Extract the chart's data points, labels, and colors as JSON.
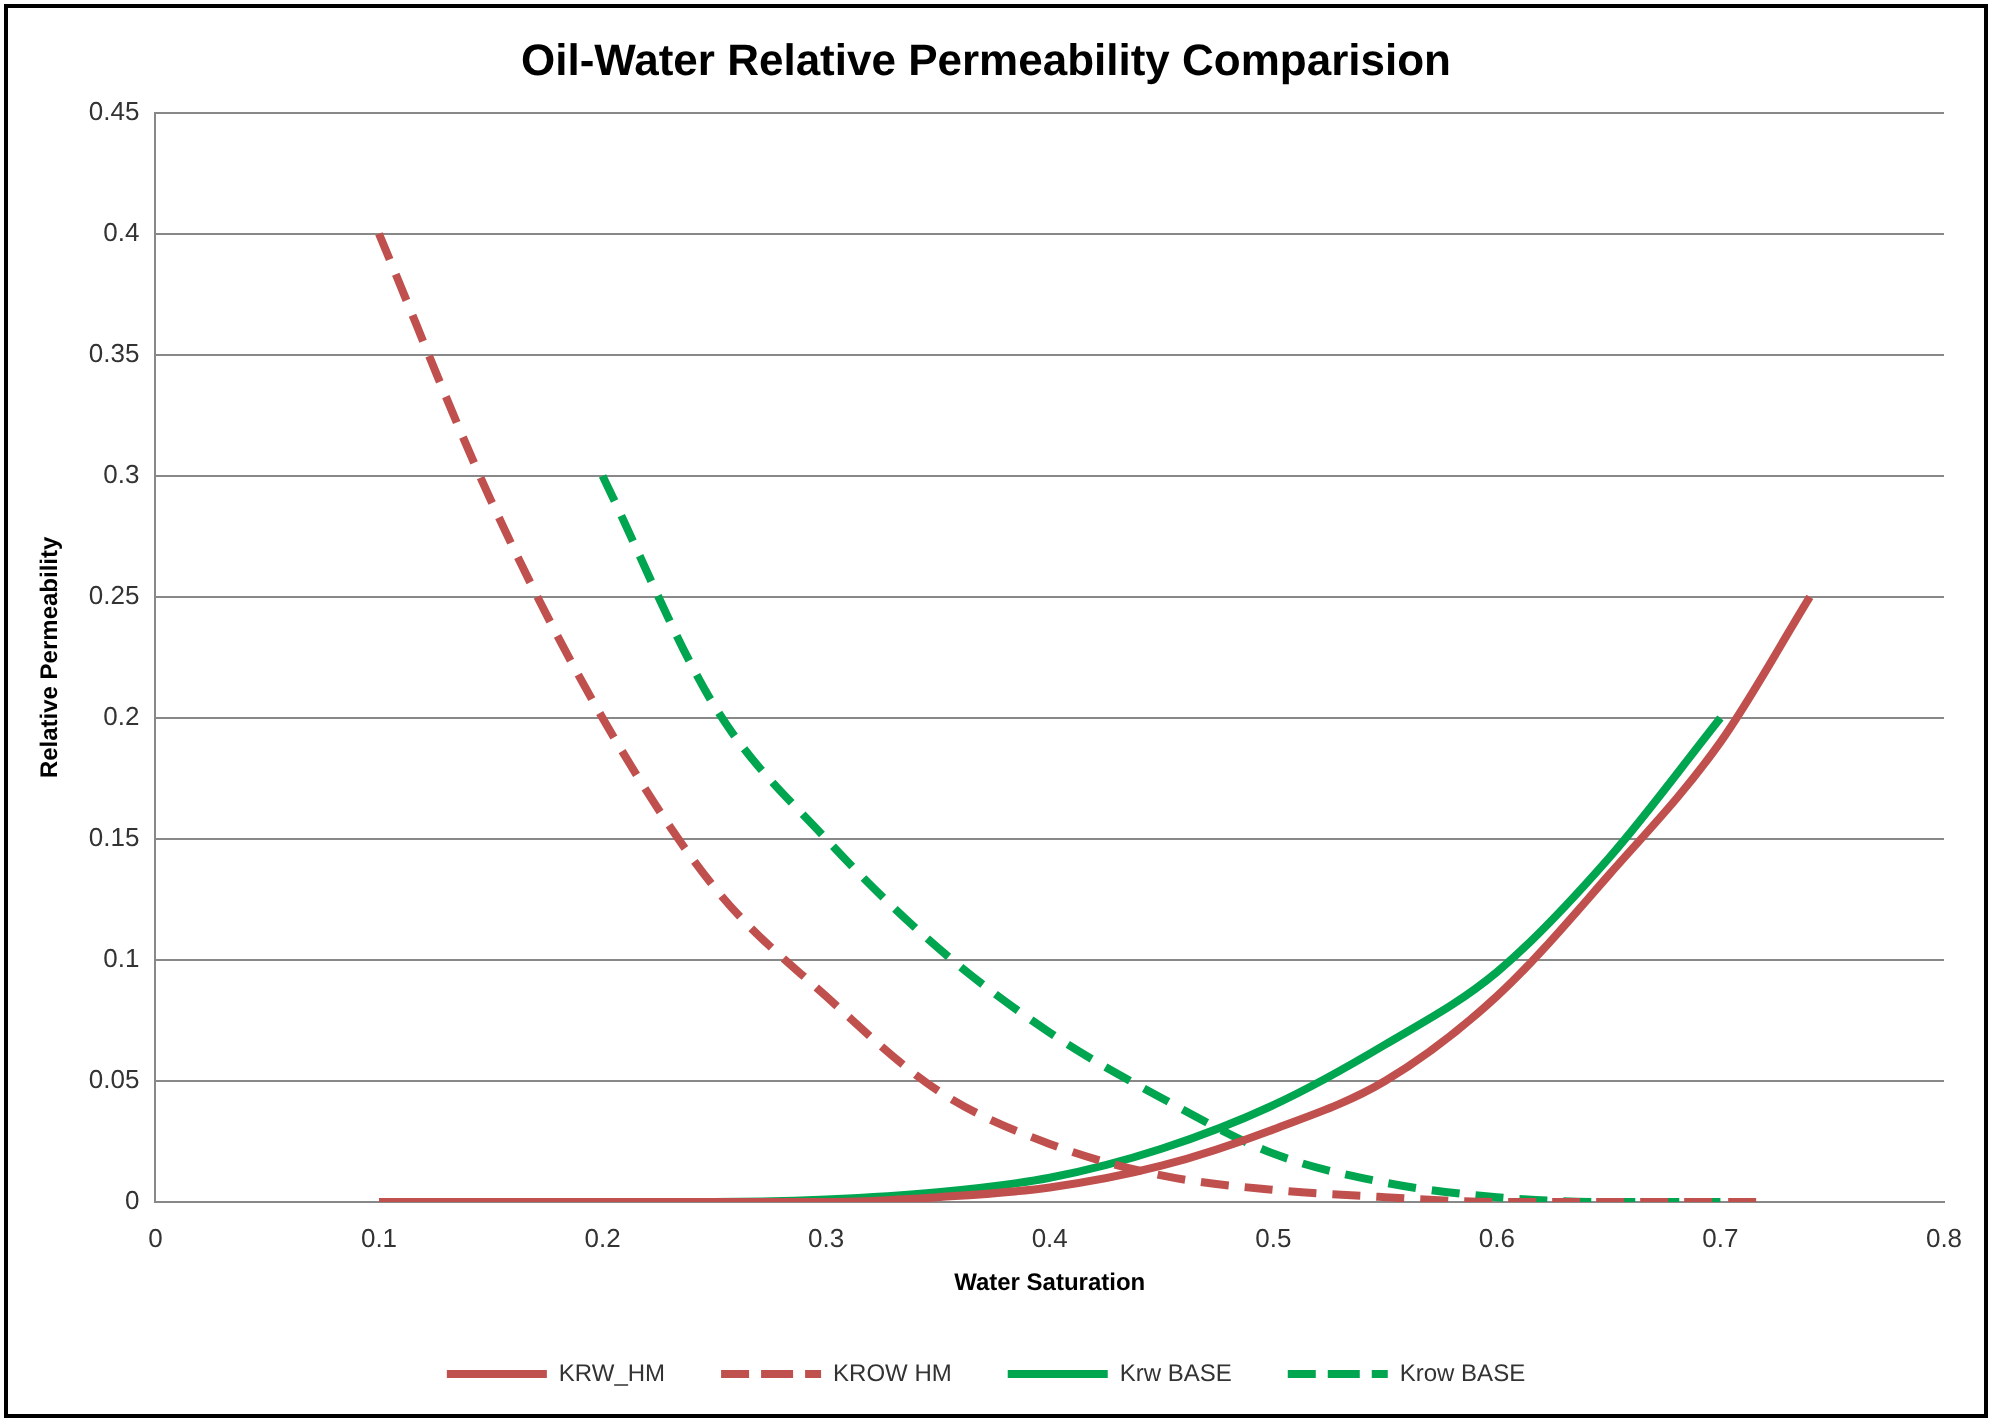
{
  "chart_data": {
    "type": "line",
    "title": "Oil-Water Relative Permeability Comparision",
    "xlabel": "Water Saturation",
    "ylabel": "Relative Permeability",
    "xlim": [
      0,
      0.8
    ],
    "xticks": [
      0,
      0.1,
      0.2,
      0.3,
      0.4,
      0.5,
      0.6,
      0.7,
      0.8
    ],
    "ylim": [
      0,
      0.45
    ],
    "yticks": [
      0,
      0.05,
      0.1,
      0.15,
      0.2,
      0.25,
      0.3,
      0.35,
      0.4,
      0.45
    ],
    "grid": "y",
    "legend": "bottom",
    "marker": "none",
    "series": [
      {
        "name": "KRW_HM",
        "color": "#c0504d",
        "line_style": "solid",
        "x": [
          0.1,
          0.2,
          0.3,
          0.35,
          0.4,
          0.45,
          0.5,
          0.55,
          0.6,
          0.65,
          0.7,
          0.74
        ],
        "values": [
          0,
          0,
          0,
          0.002,
          0.006,
          0.015,
          0.03,
          0.05,
          0.085,
          0.135,
          0.19,
          0.25
        ]
      },
      {
        "name": "KROW HM",
        "color": "#c0504d",
        "line_style": "dashed",
        "x": [
          0.1,
          0.15,
          0.2,
          0.25,
          0.3,
          0.35,
          0.4,
          0.45,
          0.5,
          0.55,
          0.6,
          0.65,
          0.7,
          0.72
        ],
        "values": [
          0.4,
          0.29,
          0.2,
          0.13,
          0.085,
          0.046,
          0.024,
          0.011,
          0.005,
          0.002,
          0,
          0,
          0,
          0
        ]
      },
      {
        "name": "Krw BASE",
        "color": "#00a550",
        "line_style": "solid",
        "x": [
          0.2,
          0.25,
          0.3,
          0.35,
          0.4,
          0.45,
          0.5,
          0.55,
          0.6,
          0.65,
          0.7
        ],
        "values": [
          0,
          0,
          0.001,
          0.004,
          0.01,
          0.022,
          0.04,
          0.065,
          0.095,
          0.142,
          0.2
        ]
      },
      {
        "name": "Krow BASE",
        "color": "#00a550",
        "line_style": "dashed",
        "x": [
          0.2,
          0.25,
          0.3,
          0.35,
          0.4,
          0.45,
          0.5,
          0.55,
          0.6,
          0.65,
          0.7
        ],
        "values": [
          0.3,
          0.205,
          0.15,
          0.105,
          0.07,
          0.043,
          0.02,
          0.008,
          0.002,
          0,
          0
        ]
      }
    ]
  }
}
